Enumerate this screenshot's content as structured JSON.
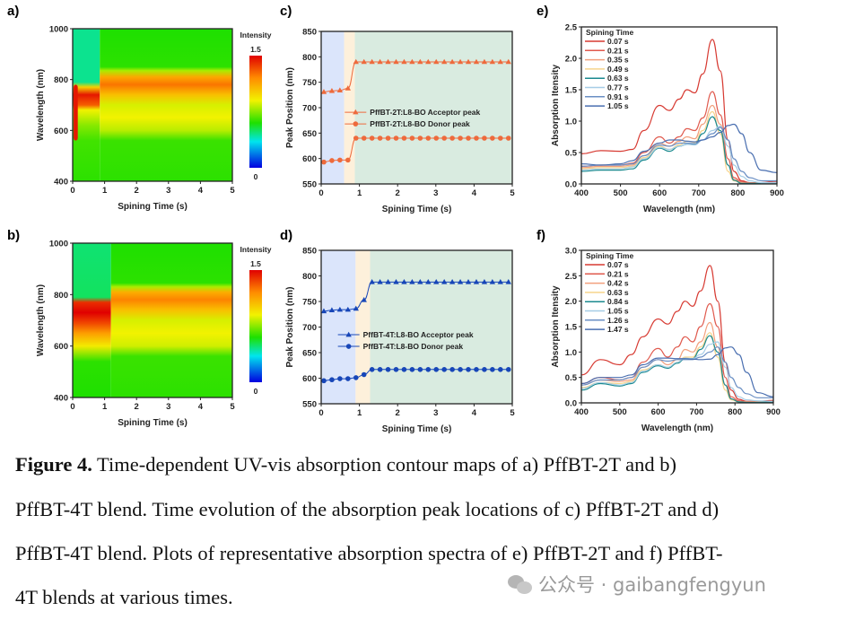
{
  "panel_labels": [
    "a)",
    "b)",
    "c)",
    "d)",
    "e)",
    "f)"
  ],
  "colormap": {
    "stops": [
      [
        0,
        "#0000e0"
      ],
      [
        0.35,
        "#00e5ee"
      ],
      [
        0.6,
        "#1ee000"
      ],
      [
        0.9,
        "#f2f200"
      ],
      [
        1.2,
        "#ff8c00"
      ],
      [
        1.5,
        "#e00000"
      ]
    ]
  },
  "chart_data": [
    {
      "id": "a",
      "type": "heatmap",
      "xlabel": "Spining Time (s)",
      "ylabel": "Wavelength (nm)",
      "xlim": [
        0,
        5
      ],
      "ylim": [
        400,
        1000
      ],
      "xticks": [
        "0",
        "1",
        "2",
        "3",
        "4",
        "5"
      ],
      "yticks": [
        "400",
        "600",
        "800",
        "1000"
      ],
      "ytick_values": [
        400,
        600,
        800,
        1000
      ],
      "colorbar": {
        "title": "Intensity",
        "max_label": "1.5",
        "min_label": "0",
        "range": [
          0,
          1.5
        ]
      },
      "switch_time": 0.85,
      "profile_before": [
        [
          400,
          0.62
        ],
        [
          560,
          0.65
        ],
        [
          620,
          0.75
        ],
        [
          680,
          0.9
        ],
        [
          700,
          1.3
        ],
        [
          740,
          1.45
        ],
        [
          770,
          1.0
        ],
        [
          790,
          0.45
        ],
        [
          1000,
          0.45
        ]
      ],
      "profile_after": [
        [
          400,
          0.62
        ],
        [
          560,
          0.64
        ],
        [
          600,
          0.82
        ],
        [
          650,
          0.9
        ],
        [
          700,
          0.86
        ],
        [
          740,
          1.05
        ],
        [
          780,
          1.25
        ],
        [
          810,
          1.12
        ],
        [
          835,
          0.8
        ],
        [
          850,
          0.62
        ],
        [
          1000,
          0.6
        ]
      ],
      "streak": {
        "t": [
          0.03,
          0.16
        ],
        "wl": [
          560,
          780
        ],
        "intensity": 1.45
      }
    },
    {
      "id": "b",
      "type": "heatmap",
      "xlabel": "Spining Time (s)",
      "ylabel": "Wavelength (nm)",
      "xlim": [
        0,
        5
      ],
      "ylim": [
        400,
        1000
      ],
      "xticks": [
        "0",
        "1",
        "2",
        "3",
        "4",
        "5"
      ],
      "yticks": [
        "400",
        "600",
        "800",
        "1000"
      ],
      "ytick_values": [
        400,
        600,
        800,
        1000
      ],
      "colorbar": {
        "title": "Intensity",
        "max_label": "1.5",
        "min_label": "0",
        "range": [
          0,
          1.5
        ]
      },
      "switch_time": 1.2,
      "profile_before": [
        [
          400,
          0.6
        ],
        [
          540,
          0.62
        ],
        [
          600,
          0.92
        ],
        [
          650,
          1.15
        ],
        [
          690,
          1.35
        ],
        [
          730,
          1.5
        ],
        [
          770,
          1.4
        ],
        [
          790,
          0.5
        ],
        [
          1000,
          0.48
        ]
      ],
      "profile_after": [
        [
          400,
          0.62
        ],
        [
          560,
          0.64
        ],
        [
          600,
          0.85
        ],
        [
          650,
          0.9
        ],
        [
          700,
          0.86
        ],
        [
          740,
          1.05
        ],
        [
          780,
          1.22
        ],
        [
          810,
          1.1
        ],
        [
          830,
          0.8
        ],
        [
          845,
          0.62
        ],
        [
          1000,
          0.6
        ]
      ],
      "streak": null
    },
    {
      "id": "c",
      "type": "line",
      "xlabel": "Spining Time (s)",
      "ylabel": "Peak Position (nm)",
      "xlim": [
        0,
        5
      ],
      "ylim": [
        550,
        850
      ],
      "xticks": [
        "0",
        "1",
        "2",
        "3",
        "4",
        "5"
      ],
      "yticks": [
        "550",
        "600",
        "650",
        "700",
        "750",
        "800",
        "850"
      ],
      "ytick_values": [
        550,
        600,
        650,
        700,
        750,
        800,
        850
      ],
      "stages": [
        {
          "from": 0,
          "to": 0.6,
          "color": "#dbe5fb"
        },
        {
          "from": 0.6,
          "to": 0.88,
          "color": "#fdf0db"
        },
        {
          "from": 0.88,
          "to": 5,
          "color": "#d9ebe0"
        }
      ],
      "x": [
        0.07,
        0.28,
        0.49,
        0.7,
        0.91,
        1.12,
        1.33,
        1.54,
        1.75,
        1.96,
        2.17,
        2.38,
        2.59,
        2.8,
        3.01,
        3.22,
        3.43,
        3.64,
        3.85,
        4.06,
        4.27,
        4.48,
        4.69,
        4.9
      ],
      "series": [
        {
          "name": "PffBT-2T:L8-BO Acceptor peak",
          "marker": "triangle",
          "color": "#ee6a3c",
          "values": [
            731,
            733,
            734,
            738,
            790,
            790,
            790,
            790,
            790,
            790,
            790,
            790,
            790,
            790,
            790,
            790,
            790,
            790,
            790,
            790,
            790,
            790,
            790,
            790
          ]
        },
        {
          "name": "PffBT-2T:L8-BO Donor peak",
          "marker": "circle",
          "color": "#ee6a3c",
          "values": [
            593,
            596,
            597,
            597,
            640,
            640,
            640,
            640,
            640,
            640,
            640,
            640,
            640,
            640,
            640,
            640,
            640,
            640,
            640,
            640,
            640,
            640,
            640,
            640
          ]
        }
      ]
    },
    {
      "id": "d",
      "type": "line",
      "xlabel": "Spining Time (s)",
      "ylabel": "Peak Position (nm)",
      "xlim": [
        0,
        5
      ],
      "ylim": [
        550,
        850
      ],
      "xticks": [
        "0",
        "1",
        "2",
        "3",
        "4",
        "5"
      ],
      "yticks": [
        "550",
        "600",
        "650",
        "700",
        "750",
        "800",
        "850"
      ],
      "ytick_values": [
        550,
        600,
        650,
        700,
        750,
        800,
        850
      ],
      "stages": [
        {
          "from": 0,
          "to": 0.9,
          "color": "#dbe5fb"
        },
        {
          "from": 0.9,
          "to": 1.28,
          "color": "#fdf0db"
        },
        {
          "from": 1.28,
          "to": 5,
          "color": "#d9ebe0"
        }
      ],
      "x": [
        0.07,
        0.28,
        0.49,
        0.7,
        0.91,
        1.12,
        1.33,
        1.54,
        1.75,
        1.96,
        2.17,
        2.38,
        2.59,
        2.8,
        3.01,
        3.22,
        3.43,
        3.64,
        3.85,
        4.06,
        4.27,
        4.48,
        4.69,
        4.9
      ],
      "series": [
        {
          "name": "PffBT-4T:L8-BO Acceptor peak",
          "marker": "triangle",
          "color": "#1746b8",
          "values": [
            731,
            733,
            734,
            734,
            736,
            753,
            788,
            788,
            788,
            788,
            788,
            788,
            788,
            788,
            788,
            788,
            788,
            788,
            788,
            788,
            788,
            788,
            788,
            788
          ]
        },
        {
          "name": "PffBT-4T:L8-BO Donor peak",
          "marker": "circle",
          "color": "#1746b8",
          "values": [
            595,
            597,
            599,
            599,
            601,
            607,
            617,
            617,
            617,
            617,
            617,
            617,
            617,
            617,
            617,
            617,
            617,
            617,
            617,
            617,
            617,
            617,
            617,
            617
          ]
        }
      ]
    },
    {
      "id": "e",
      "type": "line",
      "xlabel": "Wavelength (nm)",
      "ylabel": "Absorption Itensity",
      "xlim": [
        400,
        900
      ],
      "ylim": [
        0,
        2.5
      ],
      "xticks": [
        "400",
        "500",
        "600",
        "700",
        "800",
        "900"
      ],
      "xtick_values": [
        400,
        500,
        600,
        700,
        800,
        900
      ],
      "yticks": [
        "0.0",
        "0.5",
        "1.0",
        "1.5",
        "2.0",
        "2.5"
      ],
      "ytick_values": [
        0,
        0.5,
        1,
        1.5,
        2,
        2.5
      ],
      "legend_title": "Spining Time",
      "x": [
        400,
        450,
        500,
        530,
        560,
        600,
        625,
        650,
        670,
        690,
        710,
        735,
        755,
        775,
        790,
        810,
        830,
        860,
        900
      ],
      "series": [
        {
          "name": "0.07 s",
          "color": "#d73a32",
          "values": [
            0.48,
            0.53,
            0.52,
            0.55,
            0.85,
            1.25,
            1.17,
            1.35,
            1.5,
            1.45,
            1.75,
            2.3,
            1.8,
            0.7,
            0.2,
            0.05,
            0.02,
            0.02,
            0.05
          ]
        },
        {
          "name": "0.21 s",
          "color": "#e05a4e",
          "values": [
            0.28,
            0.3,
            0.3,
            0.33,
            0.5,
            0.75,
            0.65,
            0.75,
            0.88,
            0.85,
            1.05,
            1.47,
            1.1,
            0.4,
            0.1,
            0.03,
            0.02,
            0.02,
            0.03
          ]
        },
        {
          "name": "0.35 s",
          "color": "#f2a07e",
          "values": [
            0.26,
            0.28,
            0.28,
            0.3,
            0.45,
            0.65,
            0.6,
            0.68,
            0.75,
            0.72,
            0.95,
            1.25,
            0.95,
            0.3,
            0.07,
            0.02,
            0.01,
            0.01,
            0.02
          ]
        },
        {
          "name": "0.49 s",
          "color": "#f6d48c",
          "values": [
            0.24,
            0.26,
            0.26,
            0.28,
            0.42,
            0.6,
            0.55,
            0.62,
            0.68,
            0.66,
            0.85,
            1.15,
            0.8,
            0.2,
            0.05,
            0.01,
            0.01,
            0.01,
            0.02
          ]
        },
        {
          "name": "0.63 s",
          "color": "#1b8a8f",
          "values": [
            0.2,
            0.22,
            0.22,
            0.24,
            0.38,
            0.57,
            0.52,
            0.6,
            0.63,
            0.63,
            0.8,
            1.07,
            0.85,
            0.3,
            0.06,
            0.01,
            0.01,
            0.01,
            0.01
          ]
        },
        {
          "name": "0.77 s",
          "color": "#a6cde6",
          "values": [
            0.22,
            0.24,
            0.24,
            0.27,
            0.4,
            0.58,
            0.55,
            0.6,
            0.63,
            0.62,
            0.7,
            0.85,
            0.92,
            0.6,
            0.3,
            0.12,
            0.05,
            0.02,
            0.02
          ]
        },
        {
          "name": "0.91 s",
          "color": "#6a8fc4",
          "values": [
            0.28,
            0.3,
            0.3,
            0.32,
            0.45,
            0.62,
            0.6,
            0.65,
            0.65,
            0.64,
            0.7,
            0.8,
            0.9,
            0.7,
            0.4,
            0.2,
            0.1,
            0.05,
            0.05
          ]
        },
        {
          "name": "1.05 s",
          "color": "#4a6fb0",
          "values": [
            0.32,
            0.3,
            0.32,
            0.37,
            0.52,
            0.65,
            0.7,
            0.7,
            0.68,
            0.67,
            0.7,
            0.75,
            0.82,
            0.93,
            0.95,
            0.8,
            0.5,
            0.22,
            0.18
          ]
        }
      ]
    },
    {
      "id": "f",
      "type": "line",
      "xlabel": "Wavelength (nm)",
      "ylabel": "Absorption Itensity",
      "xlim": [
        400,
        900
      ],
      "ylim": [
        0,
        3.0
      ],
      "xticks": [
        "400",
        "500",
        "600",
        "700",
        "800",
        "900"
      ],
      "xtick_values": [
        400,
        500,
        600,
        700,
        800,
        900
      ],
      "yticks": [
        "0.0",
        "0.5",
        "1.0",
        "1.5",
        "2.0",
        "2.5",
        "3.0"
      ],
      "ytick_values": [
        0,
        0.5,
        1,
        1.5,
        2,
        2.5,
        3
      ],
      "legend_title": "Spining Time",
      "x": [
        400,
        450,
        500,
        530,
        560,
        600,
        625,
        650,
        670,
        690,
        710,
        735,
        755,
        775,
        790,
        810,
        830,
        860,
        900
      ],
      "series": [
        {
          "name": "0.07 s",
          "color": "#d73a32",
          "values": [
            0.55,
            0.85,
            0.75,
            0.95,
            1.3,
            1.65,
            1.55,
            1.8,
            2.0,
            1.9,
            2.2,
            2.7,
            2.0,
            0.8,
            0.25,
            0.07,
            0.03,
            0.03,
            0.05
          ]
        },
        {
          "name": "0.21 s",
          "color": "#e05a4e",
          "values": [
            0.38,
            0.5,
            0.45,
            0.5,
            0.8,
            1.07,
            0.9,
            1.1,
            1.3,
            1.2,
            1.5,
            1.95,
            1.5,
            0.5,
            0.12,
            0.04,
            0.02,
            0.02,
            0.03
          ]
        },
        {
          "name": "0.42 s",
          "color": "#f2a07e",
          "values": [
            0.35,
            0.45,
            0.42,
            0.45,
            0.7,
            0.85,
            0.75,
            0.85,
            1.05,
            1.0,
            1.2,
            1.58,
            1.1,
            0.35,
            0.08,
            0.02,
            0.02,
            0.02,
            0.03
          ]
        },
        {
          "name": "0.63 s",
          "color": "#f6d48c",
          "values": [
            0.3,
            0.4,
            0.38,
            0.42,
            0.65,
            0.75,
            0.7,
            0.8,
            0.9,
            0.9,
            1.1,
            1.38,
            0.9,
            0.25,
            0.06,
            0.02,
            0.01,
            0.01,
            0.02
          ]
        },
        {
          "name": "0.84 s",
          "color": "#1b8a8f",
          "values": [
            0.25,
            0.38,
            0.33,
            0.38,
            0.6,
            0.73,
            0.68,
            0.78,
            0.87,
            0.87,
            1.05,
            1.32,
            1.0,
            0.35,
            0.08,
            0.02,
            0.01,
            0.01,
            0.02
          ]
        },
        {
          "name": "1.05 s",
          "color": "#a6cde6",
          "values": [
            0.28,
            0.4,
            0.35,
            0.4,
            0.62,
            0.75,
            0.7,
            0.8,
            0.88,
            0.87,
            0.95,
            1.15,
            1.2,
            0.7,
            0.3,
            0.12,
            0.06,
            0.04,
            0.03
          ]
        },
        {
          "name": "1.26 s",
          "color": "#6a8fc4",
          "values": [
            0.35,
            0.45,
            0.45,
            0.5,
            0.7,
            0.85,
            0.82,
            0.85,
            0.85,
            0.85,
            0.9,
            1.0,
            1.1,
            0.8,
            0.5,
            0.3,
            0.18,
            0.1,
            0.1
          ]
        },
        {
          "name": "1.47 s",
          "color": "#4a6fb0",
          "values": [
            0.38,
            0.5,
            0.5,
            0.55,
            0.75,
            0.88,
            0.88,
            0.87,
            0.87,
            0.86,
            0.85,
            0.86,
            0.95,
            1.08,
            1.1,
            0.95,
            0.6,
            0.2,
            0.12
          ]
        }
      ]
    }
  ],
  "caption": {
    "label": "Figure 4.",
    "line1": " Time-dependent UV-vis absorption contour maps of a) PffBT-2T and b)",
    "line2": "PffBT-4T blend. Time evolution of the absorption peak locations of c) PffBT-2T and d)",
    "line3": "PffBT-4T blend. Plots of representative absorption spectra of e) PffBT-2T and f) PffBT-",
    "line4": "4T blends at various times."
  },
  "watermark": {
    "text": "公众号 · gaibangfengyun"
  }
}
